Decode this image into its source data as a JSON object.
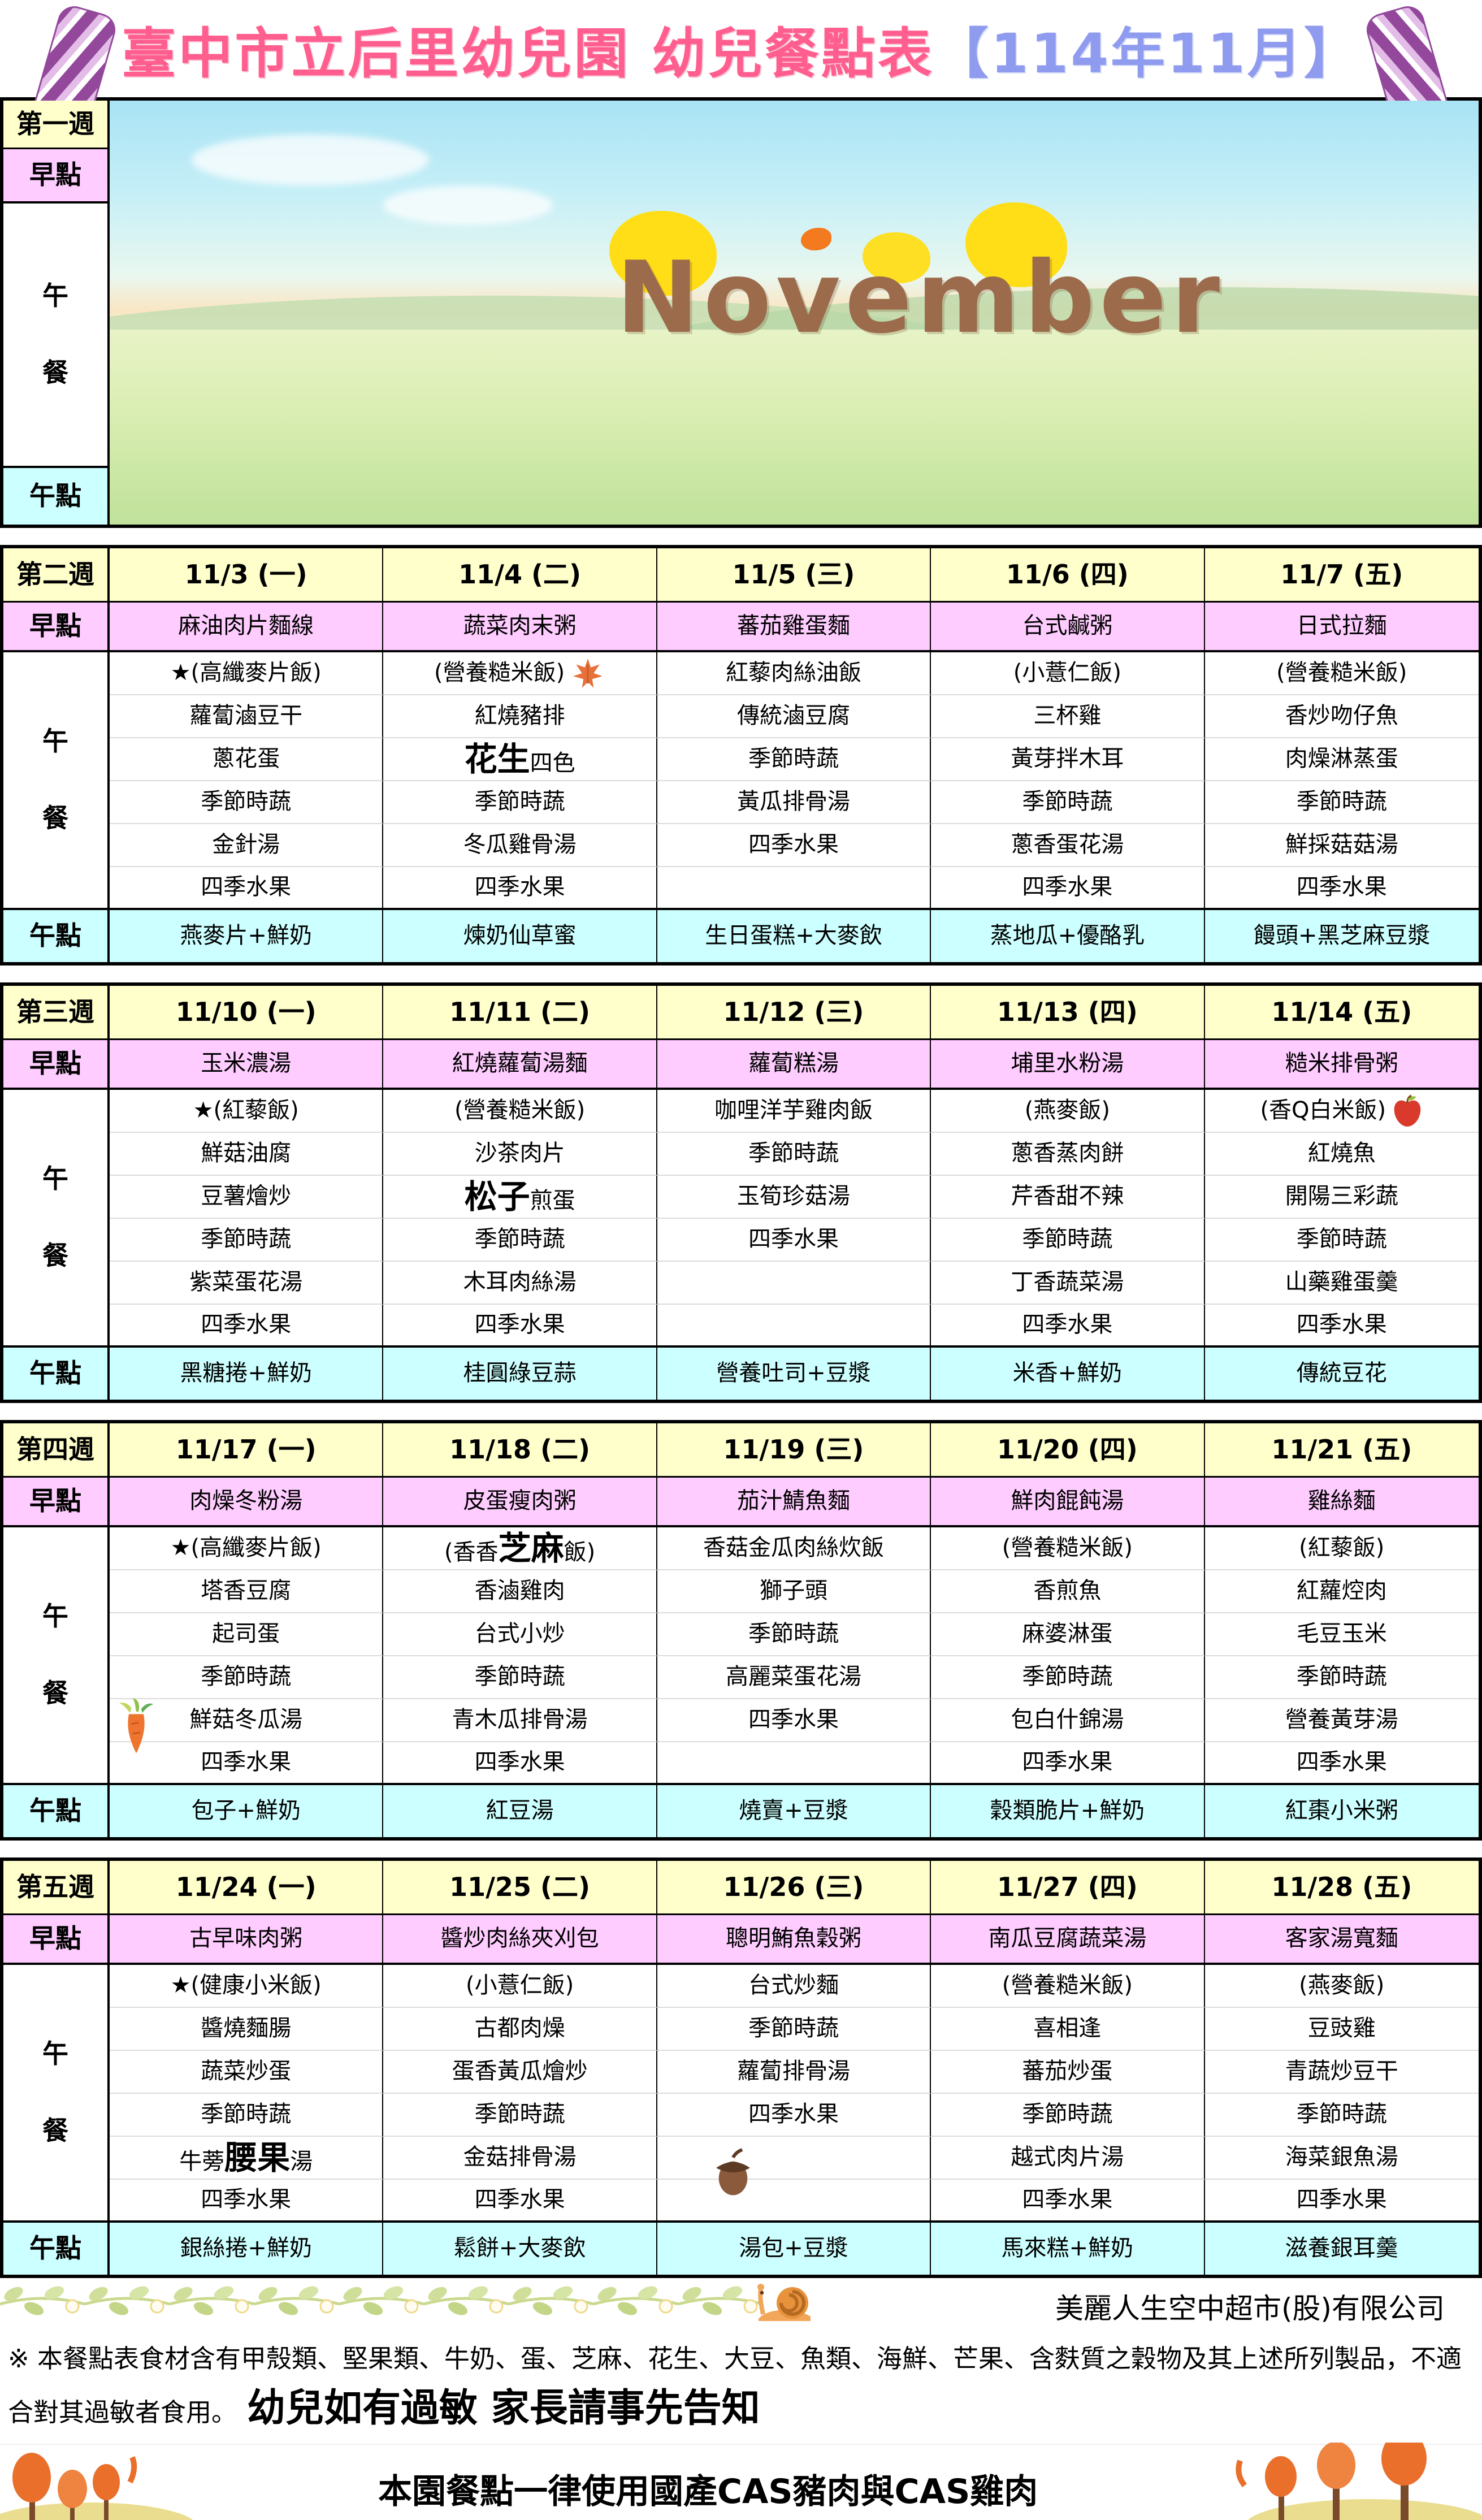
{
  "title": {
    "school": "臺中市立后里幼兒園 幼兒餐點表",
    "period": "【114年11月】"
  },
  "row_labels": {
    "breakfast": "早點",
    "lunch": "午餐",
    "snack": "午點"
  },
  "banner": {
    "text": "November"
  },
  "weeks": [
    {
      "label": "第一週",
      "banner": true
    },
    {
      "label": "第二週",
      "days": [
        {
          "date": "11/3 (一)",
          "breakfast": "麻油肉片麵線",
          "lunch": [
            "★(高纖麥片飯)",
            "蘿蔔滷豆干",
            "蔥花蛋",
            "季節時蔬",
            "金針湯",
            "四季水果"
          ],
          "snack": "燕麥片+鮮奶"
        },
        {
          "date": "11/4 (二)",
          "breakfast": "蔬菜肉末粥",
          "lunch": [
            {
              "text": "(營養糙米飯)",
              "icon": "maple-leaf"
            },
            "紅燒豬排",
            "**花生**四色",
            "季節時蔬",
            "冬瓜雞骨湯",
            "四季水果"
          ],
          "snack": "煉奶仙草蜜"
        },
        {
          "date": "11/5 (三)",
          "breakfast": "蕃茄雞蛋麵",
          "lunch": [
            "紅藜肉絲油飯",
            "傳統滷豆腐",
            "季節時蔬",
            "黃瓜排骨湯",
            "四季水果",
            ""
          ],
          "snack": "生日蛋糕+大麥飲"
        },
        {
          "date": "11/6 (四)",
          "breakfast": "台式鹹粥",
          "lunch": [
            "(小薏仁飯)",
            "三杯雞",
            "黃芽拌木耳",
            "季節時蔬",
            "蔥香蛋花湯",
            "四季水果"
          ],
          "snack": "蒸地瓜+優酪乳"
        },
        {
          "date": "11/7 (五)",
          "breakfast": "日式拉麵",
          "lunch": [
            "(營養糙米飯)",
            "香炒吻仔魚",
            "肉燥淋蒸蛋",
            "季節時蔬",
            "鮮採菇菇湯",
            "四季水果"
          ],
          "snack": "饅頭+黑芝麻豆漿"
        }
      ]
    },
    {
      "label": "第三週",
      "days": [
        {
          "date": "11/10 (一)",
          "breakfast": "玉米濃湯",
          "lunch": [
            "★(紅藜飯)",
            "鮮菇油腐",
            "豆薯燴炒",
            "季節時蔬",
            "紫菜蛋花湯",
            "四季水果"
          ],
          "snack": "黑糖捲+鮮奶"
        },
        {
          "date": "11/11 (二)",
          "breakfast": "紅燒蘿蔔湯麵",
          "lunch": [
            "(營養糙米飯)",
            "沙茶肉片",
            "**松子**煎蛋",
            "季節時蔬",
            "木耳肉絲湯",
            "四季水果"
          ],
          "snack": "桂圓綠豆蒜"
        },
        {
          "date": "11/12 (三)",
          "breakfast": "蘿蔔糕湯",
          "lunch": [
            "咖哩洋芋雞肉飯",
            "季節時蔬",
            "玉筍珍菇湯",
            "四季水果",
            "",
            ""
          ],
          "snack": "營養吐司+豆漿"
        },
        {
          "date": "11/13 (四)",
          "breakfast": "埔里水粉湯",
          "lunch": [
            "(燕麥飯)",
            "蔥香蒸肉餅",
            "芹香甜不辣",
            "季節時蔬",
            "丁香蔬菜湯",
            "四季水果"
          ],
          "snack": "米香+鮮奶"
        },
        {
          "date": "11/14 (五)",
          "breakfast": "糙米排骨粥",
          "lunch": [
            {
              "text": "(香Q白米飯)",
              "icon": "apple"
            },
            "紅燒魚",
            "開陽三彩蔬",
            "季節時蔬",
            "山藥雞蛋羹",
            "四季水果"
          ],
          "snack": "傳統豆花"
        }
      ]
    },
    {
      "label": "第四週",
      "days": [
        {
          "date": "11/17 (一)",
          "breakfast": "肉燥冬粉湯",
          "lunch": [
            "★(高纖麥片飯)",
            "塔香豆腐",
            "起司蛋",
            "季節時蔬",
            {
              "text": "鮮菇冬瓜湯",
              "icon": "carrot",
              "icon_pos": "left"
            },
            "四季水果"
          ],
          "snack": "包子+鮮奶"
        },
        {
          "date": "11/18 (二)",
          "breakfast": "皮蛋瘦肉粥",
          "lunch": [
            "(香香**芝麻**飯)",
            "香滷雞肉",
            "台式小炒",
            "季節時蔬",
            "青木瓜排骨湯",
            "四季水果"
          ],
          "snack": "紅豆湯"
        },
        {
          "date": "11/19 (三)",
          "breakfast": "茄汁鯖魚麵",
          "lunch": [
            "香菇金瓜肉絲炊飯",
            "獅子頭",
            "季節時蔬",
            "高麗菜蛋花湯",
            "四季水果",
            ""
          ],
          "snack": "燒賣+豆漿"
        },
        {
          "date": "11/20 (四)",
          "breakfast": "鮮肉餛飩湯",
          "lunch": [
            "(營養糙米飯)",
            "香煎魚",
            "麻婆淋蛋",
            "季節時蔬",
            "包白什錦湯",
            "四季水果"
          ],
          "snack": "穀類脆片+鮮奶"
        },
        {
          "date": "11/21 (五)",
          "breakfast": "雞絲麵",
          "lunch": [
            "(紅藜飯)",
            "紅蘿焢肉",
            "毛豆玉米",
            "季節時蔬",
            "營養黃芽湯",
            "四季水果"
          ],
          "snack": "紅棗小米粥"
        }
      ]
    },
    {
      "label": "第五週",
      "days": [
        {
          "date": "11/24 (一)",
          "breakfast": "古早味肉粥",
          "lunch": [
            "★(健康小米飯)",
            "醬燒麵腸",
            "蔬菜炒蛋",
            "季節時蔬",
            "牛蒡**腰果**湯",
            "四季水果"
          ],
          "snack": "銀絲捲+鮮奶"
        },
        {
          "date": "11/25 (二)",
          "breakfast": "醬炒肉絲夾刈包",
          "lunch": [
            "(小薏仁飯)",
            "古都肉燥",
            "蛋香黃瓜燴炒",
            "季節時蔬",
            "金菇排骨湯",
            "四季水果"
          ],
          "snack": "鬆餅+大麥飲"
        },
        {
          "date": "11/26 (三)",
          "breakfast": "聰明鮪魚穀粥",
          "lunch": [
            "台式炒麵",
            "季節時蔬",
            "蘿蔔排骨湯",
            "四季水果",
            {
              "text": "",
              "icon": "acorn"
            },
            ""
          ],
          "snack": "湯包+豆漿"
        },
        {
          "date": "11/27 (四)",
          "breakfast": "南瓜豆腐蔬菜湯",
          "lunch": [
            "(營養糙米飯)",
            "喜相逢",
            "蕃茄炒蛋",
            "季節時蔬",
            "越式肉片湯",
            "四季水果"
          ],
          "snack": "馬來糕+鮮奶"
        },
        {
          "date": "11/28 (五)",
          "breakfast": "客家湯寬麵",
          "lunch": [
            "(燕麥飯)",
            "豆豉雞",
            "青蔬炒豆干",
            "季節時蔬",
            "海菜銀魚湯",
            "四季水果"
          ],
          "snack": "滋養銀耳羹"
        }
      ]
    }
  ],
  "footer": {
    "company": "美麗人生空中超市(股)有限公司",
    "allergy_note": "※ 本餐點表食材含有甲殼類、堅果類、牛奶、蛋、芝麻、花生、大豆、魚類、海鮮、芒果、含麩質之穀物及其上述所列製品，不適合對其過敏者食用。",
    "allergy_emphasis": "幼兒如有過敏 家長請事先告知",
    "cas_note": "本園餐點一律使用國產CAS豬肉與CAS雞肉"
  },
  "colors": {
    "header_yellow": "#FFFFCC",
    "breakfast_pink": "#FFCCFF",
    "snack_cyan": "#CCFFFF",
    "title_pink": "#FF5E8E",
    "title_period_blue": "#8F9BEE"
  }
}
